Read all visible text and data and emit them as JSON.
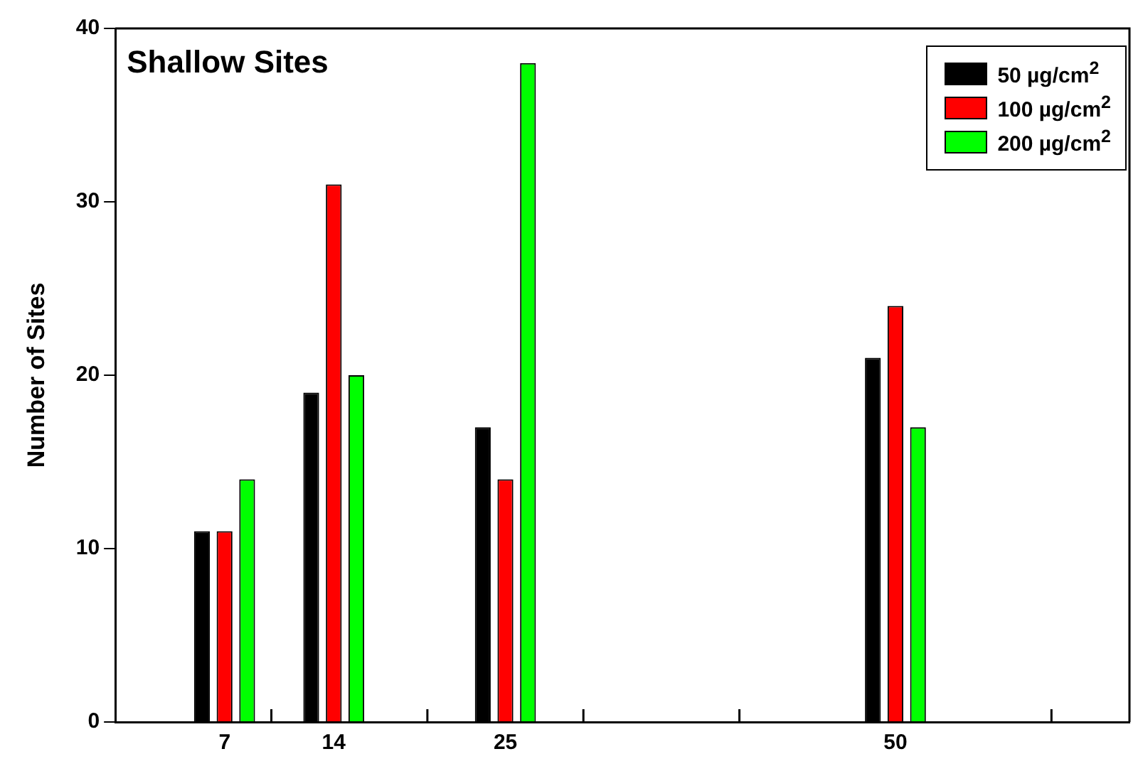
{
  "chart_data": {
    "type": "bar",
    "title": "Shallow Sites",
    "ylabel": "Number of Sites",
    "x": [
      7,
      14,
      25,
      50
    ],
    "series": [
      {
        "name": "50 µg/cm$^{2}$",
        "color": "#000000",
        "values": [
          11,
          19,
          17,
          21
        ]
      },
      {
        "name": "100 µg/cm$^{2}$",
        "color": "#ff0000",
        "values": [
          11,
          31,
          14,
          24
        ]
      },
      {
        "name": "200 µg/cm$^{2}$",
        "color": "#00ff00",
        "values": [
          14,
          20,
          38,
          17
        ]
      }
    ],
    "xlim": [
      0,
      65
    ],
    "xticks": [
      7,
      14,
      25,
      50,
      {
        "value": 10,
        "label": null
      },
      {
        "value": 20,
        "label": null
      },
      {
        "value": 30,
        "label": null
      },
      {
        "value": 40,
        "label": null
      },
      {
        "value": 60,
        "label": null
      }
    ],
    "ylim": [
      0,
      40
    ],
    "yticks": [
      0,
      10,
      20,
      30,
      40
    ],
    "grid": false,
    "legend": "top right"
  }
}
